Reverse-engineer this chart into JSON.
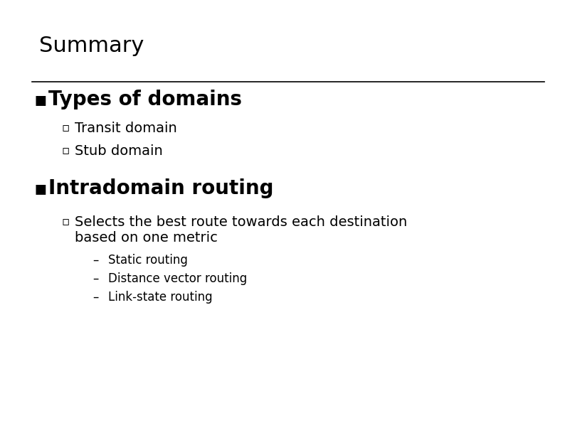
{
  "background_color": "#ffffff",
  "title": "Summary",
  "title_fontsize": 22,
  "title_fontweight": "normal",
  "separator_color": "#000000",
  "separator_linewidth": 1.2,
  "bullet1_marker": "▪",
  "bullet1_text": "Types of domains",
  "bullet1_fontsize": 20,
  "sub1_marker": "▫",
  "sub1_items": [
    "Transit domain",
    "Stub domain"
  ],
  "sub1_fontsize": 14,
  "bullet2_text": "Intradomain routing",
  "bullet2_fontsize": 20,
  "sub2_marker": "▫",
  "sub2_text_line1": "Selects the best route towards each destination",
  "sub2_text_line2": "based on one metric",
  "sub2_fontsize": 14,
  "sub3_marker": "–",
  "sub3_items": [
    "Static routing",
    "Distance vector routing",
    "Link-state routing"
  ],
  "sub3_fontsize": 12
}
